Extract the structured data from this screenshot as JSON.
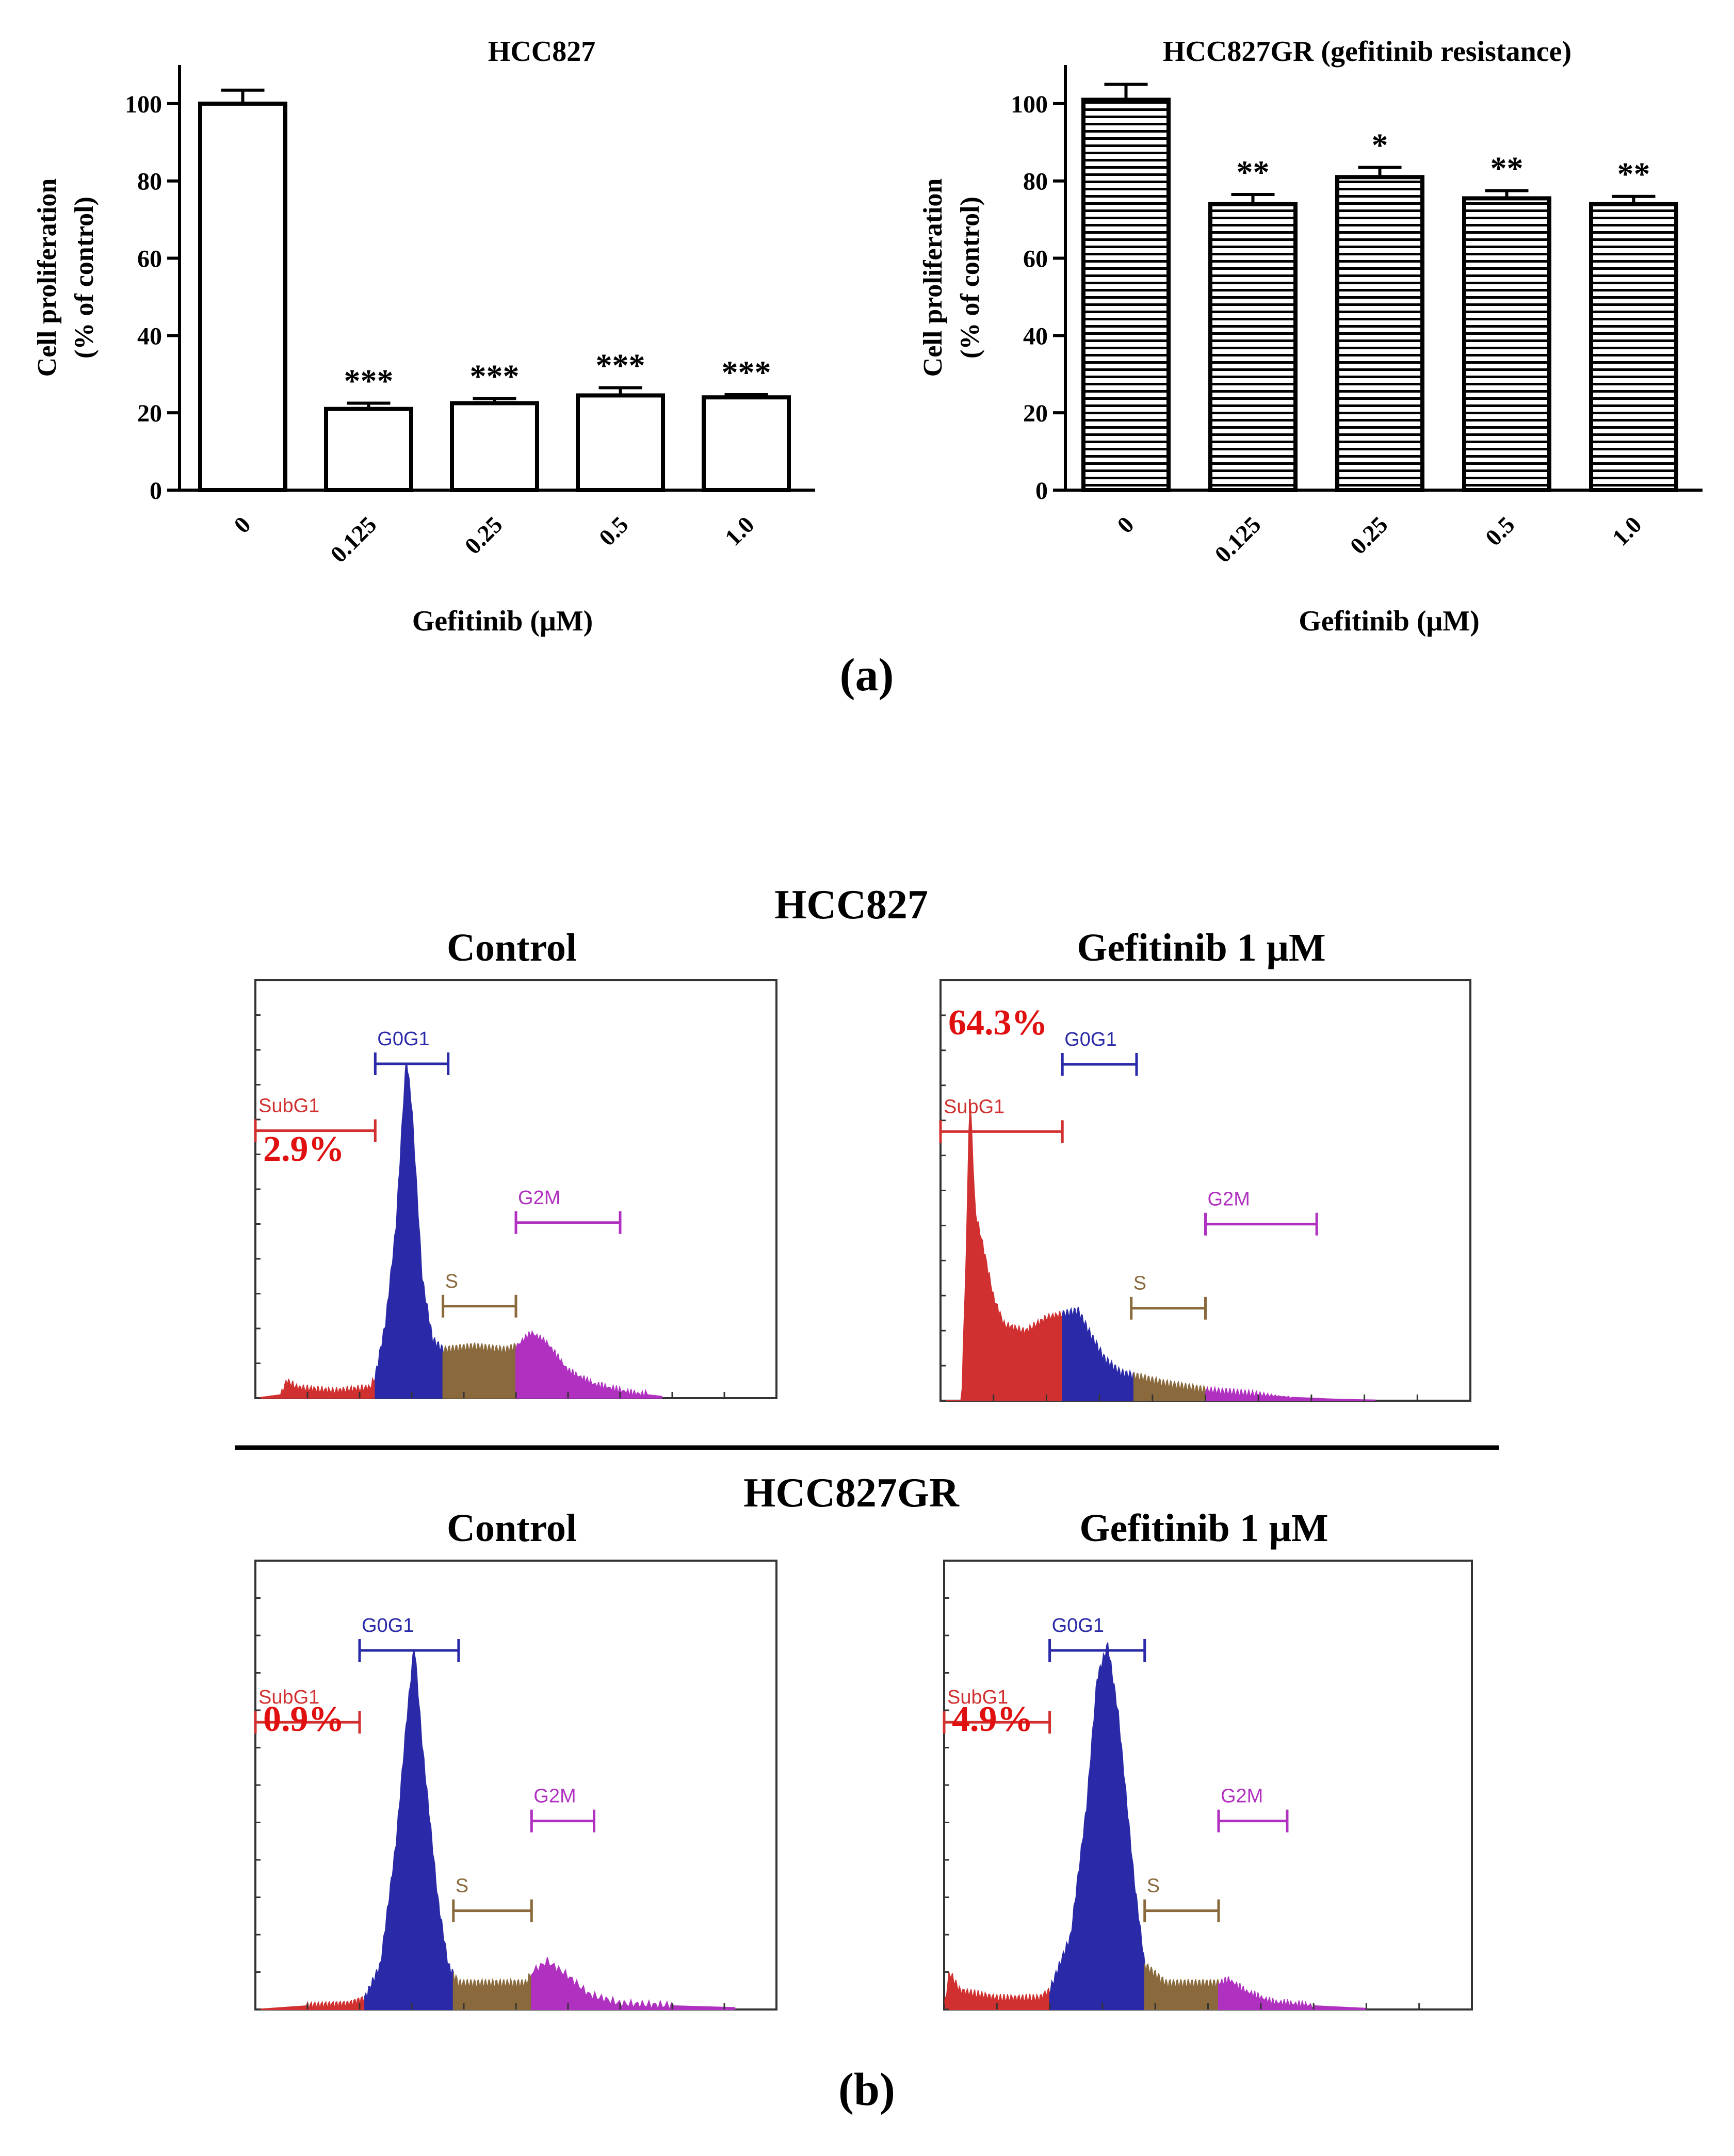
{
  "panel_a_label": "(a)",
  "panel_b_label": "(b)",
  "colors": {
    "subg1": "#d03030",
    "g0g1": "#2a2aa8",
    "s": "#8a6a3c",
    "g2m": "#b030c0",
    "percent_text": "#e01010",
    "axis": "#000000"
  },
  "chart_data": [
    {
      "type": "bar",
      "id": "bar-hcc827",
      "title": "HCC827",
      "fill": "open",
      "xlabel": "Gefitinib (μM)",
      "ylabel_lines": [
        "Cell proliferation",
        "(% of control)"
      ],
      "categories": [
        "0",
        "0.125",
        "0.25",
        "0.5",
        "1.0"
      ],
      "values": [
        100,
        21,
        22.5,
        24.5,
        24
      ],
      "errors": [
        3.5,
        1.5,
        1.2,
        2,
        0.7
      ],
      "significance": [
        "",
        "***",
        "***",
        "***",
        "***"
      ],
      "ylim": [
        0,
        110
      ],
      "yticks": [
        0,
        20,
        40,
        60,
        80,
        100
      ]
    },
    {
      "type": "bar",
      "id": "bar-hcc827gr",
      "title": "HCC827GR (gefitinib resistance)",
      "fill": "horizontal-stripes",
      "xlabel": "Gefitinib (μM)",
      "ylabel_lines": [
        "Cell proliferation",
        "(% of control)"
      ],
      "categories": [
        "0",
        "0.125",
        "0.25",
        "0.5",
        "1.0"
      ],
      "values": [
        101,
        74,
        81,
        75.5,
        74
      ],
      "errors": [
        4,
        2.5,
        2.5,
        2,
        2
      ],
      "significance": [
        "",
        "**",
        "*",
        "**",
        "**"
      ],
      "ylim": [
        0,
        110
      ],
      "yticks": [
        0,
        20,
        40,
        60,
        80,
        100
      ]
    },
    {
      "type": "area",
      "id": "hist-hcc827-control",
      "group_title": "HCC827",
      "title": "Control",
      "percent_label": "2.9%",
      "subg1_percent": 2.9,
      "gates": [
        {
          "name": "SubG1",
          "from": 0,
          "to": 0.23
        },
        {
          "name": "G0G1",
          "from": 0.23,
          "to": 0.37
        },
        {
          "name": "S",
          "from": 0.36,
          "to": 0.5
        },
        {
          "name": "G2M",
          "from": 0.5,
          "to": 0.7
        }
      ],
      "boundaries": [
        0.23,
        0.36,
        0.5,
        0.78
      ],
      "profile": [
        [
          0,
          0
        ],
        [
          0.05,
          0.01
        ],
        [
          0.06,
          0.05
        ],
        [
          0.08,
          0.03
        ],
        [
          0.15,
          0.02
        ],
        [
          0.22,
          0.03
        ],
        [
          0.23,
          0.06
        ],
        [
          0.25,
          0.22
        ],
        [
          0.27,
          0.5
        ],
        [
          0.285,
          0.88
        ],
        [
          0.29,
          0.99
        ],
        [
          0.3,
          0.85
        ],
        [
          0.32,
          0.35
        ],
        [
          0.34,
          0.17
        ],
        [
          0.36,
          0.14
        ],
        [
          0.42,
          0.15
        ],
        [
          0.48,
          0.14
        ],
        [
          0.5,
          0.15
        ],
        [
          0.53,
          0.19
        ],
        [
          0.56,
          0.16
        ],
        [
          0.6,
          0.08
        ],
        [
          0.65,
          0.04
        ],
        [
          0.72,
          0.015
        ],
        [
          0.78,
          0.005
        ],
        [
          0.8,
          0
        ]
      ]
    },
    {
      "type": "area",
      "id": "hist-hcc827-gefitinib",
      "group_title": "HCC827",
      "title": "Gefitinib 1 μM",
      "percent_label": "64.3%",
      "subg1_percent": 64.3,
      "gates": [
        {
          "name": "SubG1",
          "from": 0,
          "to": 0.23
        },
        {
          "name": "G0G1",
          "from": 0.23,
          "to": 0.37
        },
        {
          "name": "S",
          "from": 0.36,
          "to": 0.5
        },
        {
          "name": "G2M",
          "from": 0.5,
          "to": 0.71
        }
      ],
      "boundaries": [
        0.23,
        0.365,
        0.5,
        0.82
      ],
      "profile": [
        [
          0,
          0
        ],
        [
          0.04,
          0
        ],
        [
          0.05,
          0.5
        ],
        [
          0.055,
          0.9
        ],
        [
          0.06,
          0.74
        ],
        [
          0.065,
          0.55
        ],
        [
          0.08,
          0.45
        ],
        [
          0.1,
          0.3
        ],
        [
          0.12,
          0.22
        ],
        [
          0.16,
          0.2
        ],
        [
          0.2,
          0.24
        ],
        [
          0.23,
          0.25
        ],
        [
          0.26,
          0.26
        ],
        [
          0.28,
          0.2
        ],
        [
          0.31,
          0.12
        ],
        [
          0.34,
          0.08
        ],
        [
          0.37,
          0.07
        ],
        [
          0.42,
          0.05
        ],
        [
          0.5,
          0.03
        ],
        [
          0.58,
          0.02
        ],
        [
          0.66,
          0.01
        ],
        [
          0.75,
          0.004
        ],
        [
          0.82,
          0.002
        ],
        [
          0.85,
          0
        ]
      ]
    },
    {
      "type": "area",
      "id": "hist-hcc827gr-control",
      "group_title": "HCC827GR",
      "title": "Control",
      "percent_label": "0.9%",
      "subg1_percent": 0.9,
      "gates": [
        {
          "name": "SubG1",
          "from": 0,
          "to": 0.2
        },
        {
          "name": "G0G1",
          "from": 0.2,
          "to": 0.39
        },
        {
          "name": "S",
          "from": 0.38,
          "to": 0.53
        },
        {
          "name": "G2M",
          "from": 0.53,
          "to": 0.65
        }
      ],
      "boundaries": [
        0.21,
        0.38,
        0.53,
        0.92
      ],
      "profile": [
        [
          0,
          0
        ],
        [
          0.1,
          0.01
        ],
        [
          0.18,
          0.015
        ],
        [
          0.21,
          0.03
        ],
        [
          0.24,
          0.12
        ],
        [
          0.27,
          0.45
        ],
        [
          0.29,
          0.78
        ],
        [
          0.305,
          0.99
        ],
        [
          0.32,
          0.72
        ],
        [
          0.35,
          0.3
        ],
        [
          0.37,
          0.12
        ],
        [
          0.39,
          0.07
        ],
        [
          0.45,
          0.07
        ],
        [
          0.52,
          0.07
        ],
        [
          0.53,
          0.1
        ],
        [
          0.56,
          0.13
        ],
        [
          0.6,
          0.09
        ],
        [
          0.64,
          0.04
        ],
        [
          0.7,
          0.015
        ],
        [
          0.8,
          0.01
        ],
        [
          0.92,
          0.005
        ],
        [
          0.95,
          0
        ]
      ]
    },
    {
      "type": "area",
      "id": "hist-hcc827gr-gefitinib",
      "group_title": "HCC827GR",
      "title": "Gefitinib 1 μM",
      "percent_label": "4.9%",
      "subg1_percent": 4.9,
      "gates": [
        {
          "name": "SubG1",
          "from": 0,
          "to": 0.2
        },
        {
          "name": "G0G1",
          "from": 0.2,
          "to": 0.38
        },
        {
          "name": "S",
          "from": 0.38,
          "to": 0.52
        },
        {
          "name": "G2M",
          "from": 0.52,
          "to": 0.65
        }
      ],
      "boundaries": [
        0.2,
        0.38,
        0.52,
        0.8
      ],
      "profile": [
        [
          0,
          0
        ],
        [
          0.01,
          0.1
        ],
        [
          0.03,
          0.05
        ],
        [
          0.1,
          0.03
        ],
        [
          0.18,
          0.03
        ],
        [
          0.2,
          0.05
        ],
        [
          0.24,
          0.2
        ],
        [
          0.27,
          0.55
        ],
        [
          0.29,
          0.9
        ],
        [
          0.31,
          0.99
        ],
        [
          0.33,
          0.8
        ],
        [
          0.36,
          0.35
        ],
        [
          0.38,
          0.12
        ],
        [
          0.42,
          0.07
        ],
        [
          0.48,
          0.07
        ],
        [
          0.52,
          0.07
        ],
        [
          0.54,
          0.08
        ],
        [
          0.57,
          0.05
        ],
        [
          0.62,
          0.02
        ],
        [
          0.7,
          0.01
        ],
        [
          0.8,
          0.003
        ],
        [
          0.82,
          0
        ]
      ]
    }
  ]
}
